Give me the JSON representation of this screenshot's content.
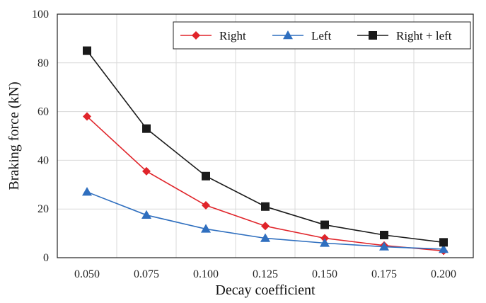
{
  "chart_data": {
    "type": "line",
    "title": "",
    "xlabel": "Decay coefficient",
    "ylabel": "Braking force (kN)",
    "x": [
      "0.050",
      "0.075",
      "0.100",
      "0.125",
      "0.150",
      "0.175",
      "0.200"
    ],
    "ylim": [
      0,
      100
    ],
    "yticks": [
      "0",
      "20",
      "40",
      "60",
      "80",
      "100"
    ],
    "grid": true,
    "legend_position": "top-right",
    "series": [
      {
        "name": "Right",
        "color": "#e0242a",
        "marker": "diamond",
        "values": [
          58,
          35.5,
          21.5,
          13,
          8,
          5,
          2.8
        ]
      },
      {
        "name": "Left",
        "color": "#2f6fbf",
        "marker": "triangle",
        "values": [
          27,
          17.5,
          11.8,
          8,
          6,
          4.5,
          3.5
        ]
      },
      {
        "name": "Right + left",
        "color": "#1a1a1a",
        "marker": "square",
        "values": [
          85,
          53,
          33.5,
          21,
          13.5,
          9.3,
          6.3
        ]
      }
    ]
  }
}
